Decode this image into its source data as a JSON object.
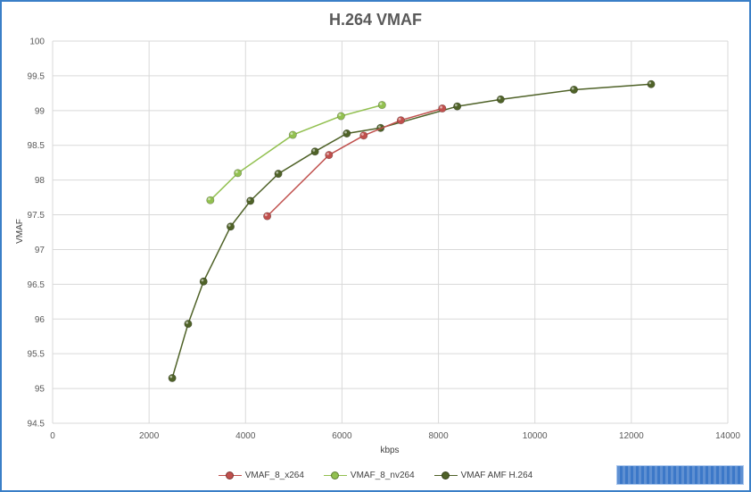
{
  "chart_data": {
    "type": "line",
    "title": "H.264 VMAF",
    "xlabel": "kbps",
    "ylabel": "VMAF",
    "xlim": [
      0,
      14000
    ],
    "ylim": [
      94.5,
      100
    ],
    "x_ticks": [
      "0",
      "2000",
      "4000",
      "6000",
      "8000",
      "10000",
      "12000",
      "14000"
    ],
    "y_ticks": [
      "94.5",
      "95",
      "95.5",
      "96",
      "96.5",
      "97",
      "97.5",
      "98",
      "98.5",
      "99",
      "99.5",
      "100"
    ],
    "grid": true,
    "legend_position": "bottom",
    "series": [
      {
        "name": "VMAF_8_x264",
        "color": "#c0504d",
        "points": [
          [
            4450,
            97.48
          ],
          [
            5730,
            98.36
          ],
          [
            6450,
            98.64
          ],
          [
            7220,
            98.86
          ],
          [
            8080,
            99.03
          ]
        ]
      },
      {
        "name": "VMAF_8_nv264",
        "color": "#92c050",
        "points": [
          [
            3270,
            97.71
          ],
          [
            3840,
            98.1
          ],
          [
            4980,
            98.65
          ],
          [
            5980,
            98.92
          ],
          [
            6830,
            99.08
          ]
        ]
      },
      {
        "name": "VMAF AMF H.264",
        "color": "#4f6228",
        "points": [
          [
            2480,
            95.15
          ],
          [
            2810,
            95.93
          ],
          [
            3130,
            96.54
          ],
          [
            3690,
            97.33
          ],
          [
            4100,
            97.7
          ],
          [
            4680,
            98.09
          ],
          [
            5440,
            98.41
          ],
          [
            6100,
            98.67
          ],
          [
            6800,
            98.75
          ],
          [
            8390,
            99.06
          ],
          [
            9290,
            99.16
          ],
          [
            10810,
            99.3
          ],
          [
            12410,
            99.38
          ]
        ]
      }
    ]
  }
}
